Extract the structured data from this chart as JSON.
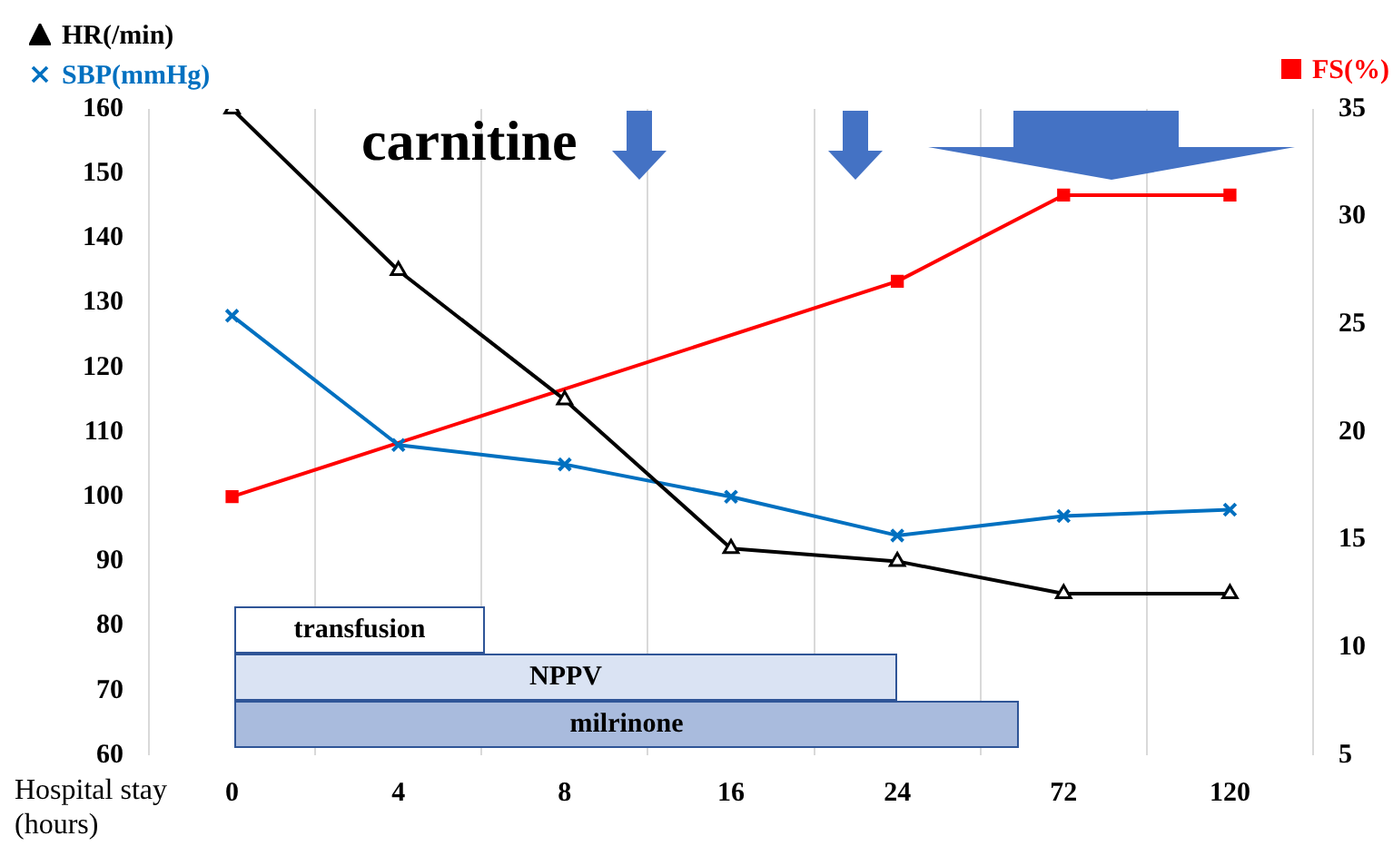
{
  "chart_data": {
    "type": "line",
    "xlabel": "Hospital stay (hours)",
    "categories": [
      "0",
      "4",
      "8",
      "16",
      "24",
      "72",
      "120"
    ],
    "series": [
      {
        "name": "HR(/min)",
        "color": "#000000",
        "marker": "triangle",
        "values": [
          160,
          135,
          115,
          92,
          90,
          85,
          85
        ]
      },
      {
        "name": "SBP(mmHg)",
        "color": "#0070c0",
        "marker": "cross",
        "values": [
          128,
          108,
          105,
          100,
          94,
          97,
          98
        ]
      },
      {
        "name": "FS(%)",
        "color": "#ff0000",
        "marker": "square",
        "axis": "y2",
        "values": [
          17,
          null,
          null,
          null,
          27,
          31,
          31
        ]
      }
    ],
    "ylim": [
      60,
      160
    ],
    "yticks": [
      60,
      70,
      80,
      90,
      100,
      110,
      120,
      130,
      140,
      150,
      160
    ],
    "y2lim": [
      5,
      35
    ],
    "y2ticks": [
      5,
      10,
      15,
      20,
      25,
      30,
      35
    ],
    "grid": "x",
    "legend": "top",
    "annotations": [
      "carnitine",
      "transfusion",
      "NPPV",
      "milrinone"
    ]
  }
}
